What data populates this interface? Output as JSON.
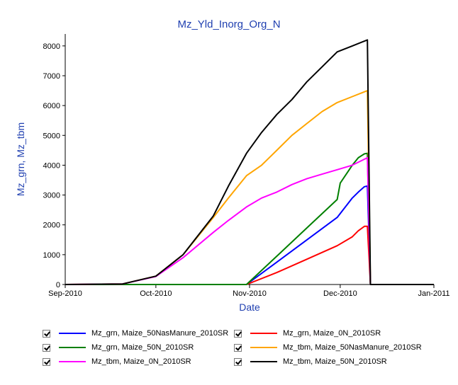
{
  "chart_data": {
    "type": "line",
    "title": "Mz_Yld_Inorg_Org_N",
    "xlabel": "Date",
    "ylabel": "Mz_grn, Mz_tbm",
    "xlim": [
      "2010-09-01",
      "2011-01-01"
    ],
    "ylim": [
      0,
      8400
    ],
    "x_ticks": [
      "2010-09-01",
      "2010-10-01",
      "2010-11-01",
      "2010-12-01",
      "2011-01-01"
    ],
    "x_tick_labels": [
      "Sep-2010",
      "Oct-2010",
      "Nov-2010",
      "Dec-2010",
      "Jan-2011"
    ],
    "y_ticks": [
      0,
      1000,
      2000,
      3000,
      4000,
      5000,
      6000,
      7000,
      8000
    ],
    "title_color": "#1f3fb0",
    "label_color": "#1f3fb0",
    "legend_position": "bottom",
    "series": [
      {
        "name": "Mz_grn, Maize_50NasManure_2010SR",
        "color": "#0000ff",
        "x": [
          "2010-09-01",
          "2010-10-31",
          "2010-11-10",
          "2010-11-20",
          "2010-11-30",
          "2010-12-05",
          "2010-12-07",
          "2010-12-09",
          "2010-12-10",
          "2010-12-11"
        ],
        "y": [
          0,
          0,
          750,
          1500,
          2250,
          2900,
          3100,
          3280,
          3300,
          0
        ]
      },
      {
        "name": "Mz_grn, Maize_0N_2010SR",
        "color": "#ff0000",
        "x": [
          "2010-09-01",
          "2010-10-31",
          "2010-11-10",
          "2010-11-20",
          "2010-11-30",
          "2010-12-05",
          "2010-12-07",
          "2010-12-09",
          "2010-12-10",
          "2010-12-11"
        ],
        "y": [
          0,
          0,
          400,
          850,
          1300,
          1600,
          1800,
          1950,
          1950,
          0
        ]
      },
      {
        "name": "Mz_grn, Maize_50N_2010SR",
        "color": "#008000",
        "x": [
          "2010-09-01",
          "2010-10-31",
          "2010-11-10",
          "2010-11-20",
          "2010-11-30",
          "2010-12-01",
          "2010-12-05",
          "2010-12-07",
          "2010-12-09",
          "2010-12-10",
          "2010-12-11"
        ],
        "y": [
          0,
          0,
          950,
          1900,
          2850,
          3400,
          4000,
          4250,
          4380,
          4400,
          0
        ]
      },
      {
        "name": "Mz_tbm, Maize_50NasManure_2010SR",
        "color": "#ffa500",
        "x": [
          "2010-09-01",
          "2010-09-20",
          "2010-10-01",
          "2010-10-10",
          "2010-10-20",
          "2010-10-25",
          "2010-10-31",
          "2010-11-05",
          "2010-11-10",
          "2010-11-15",
          "2010-11-20",
          "2010-11-25",
          "2010-11-30",
          "2010-12-05",
          "2010-12-10",
          "2010-12-11"
        ],
        "y": [
          0,
          20,
          280,
          1000,
          2250,
          2900,
          3650,
          4000,
          4500,
          5000,
          5400,
          5800,
          6100,
          6300,
          6500,
          0
        ]
      },
      {
        "name": "Mz_tbm, Maize_0N_2010SR",
        "color": "#ff00ff",
        "x": [
          "2010-09-01",
          "2010-09-20",
          "2010-10-01",
          "2010-10-10",
          "2010-10-20",
          "2010-10-25",
          "2010-10-31",
          "2010-11-05",
          "2010-11-10",
          "2010-11-15",
          "2010-11-20",
          "2010-11-25",
          "2010-11-30",
          "2010-12-05",
          "2010-12-10",
          "2010-12-11"
        ],
        "y": [
          0,
          20,
          270,
          900,
          1750,
          2150,
          2600,
          2900,
          3100,
          3350,
          3550,
          3700,
          3850,
          4000,
          4250,
          0
        ]
      },
      {
        "name": "Mz_tbm, Maize_50N_2010SR",
        "color": "#000000",
        "x": [
          "2010-09-01",
          "2010-09-20",
          "2010-10-01",
          "2010-10-10",
          "2010-10-20",
          "2010-10-25",
          "2010-10-31",
          "2010-11-05",
          "2010-11-10",
          "2010-11-15",
          "2010-11-20",
          "2010-11-25",
          "2010-11-30",
          "2010-12-05",
          "2010-12-10",
          "2010-12-11",
          "2011-01-01"
        ],
        "y": [
          0,
          20,
          280,
          1000,
          2300,
          3300,
          4400,
          5100,
          5700,
          6200,
          6800,
          7300,
          7800,
          8000,
          8200,
          0,
          0
        ]
      }
    ]
  }
}
